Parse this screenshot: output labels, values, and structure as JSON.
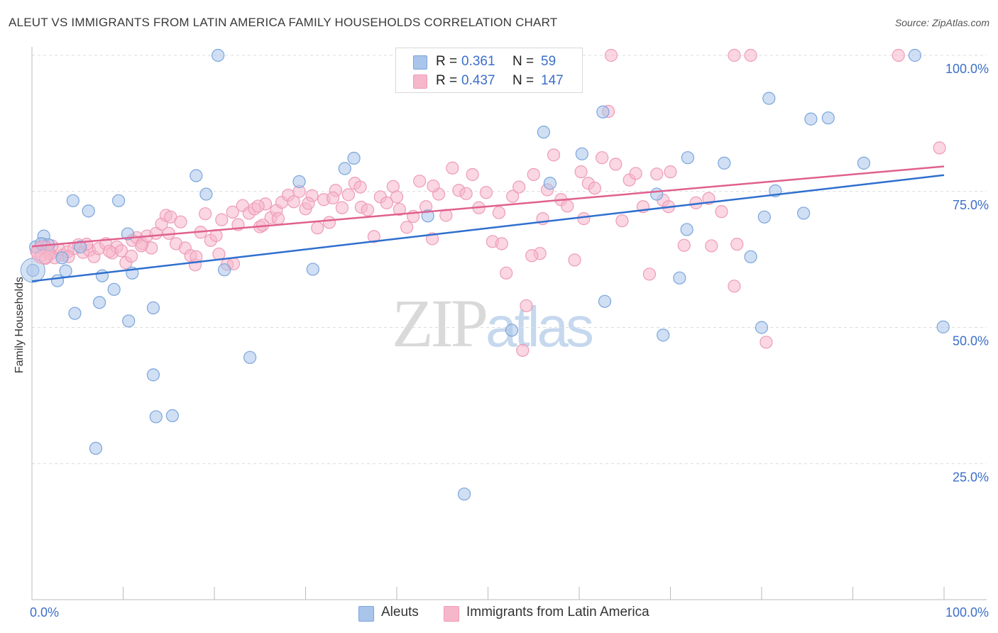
{
  "title": "ALEUT VS IMMIGRANTS FROM LATIN AMERICA FAMILY HOUSEHOLDS CORRELATION CHART",
  "source": "Source: ZipAtlas.com",
  "watermark": {
    "zip": "ZIP",
    "atlas": "atlas"
  },
  "legend_top": {
    "rows": [
      {
        "r_label": "R =",
        "r_value": "0.361",
        "n_label": "N =",
        "n_value": "59",
        "color": "#a9c5ea"
      },
      {
        "r_label": "R =",
        "r_value": "0.437",
        "n_label": "N =",
        "n_value": "147",
        "color": "#f6b7cb"
      }
    ]
  },
  "legend_bottom": [
    {
      "label": "Aleuts",
      "color": "#a9c5ea"
    },
    {
      "label": "Immigrants from Latin America",
      "color": "#f6b7cb"
    }
  ],
  "colors": {
    "aleut_fill": "#a9c5ea",
    "aleut_stroke": "#7aa5dd",
    "aleut_line": "#2f6fce",
    "latin_fill": "#f6b7cb",
    "latin_stroke": "#ee9bb7",
    "latin_line": "#e0608e",
    "tick_text": "#3c6fc9",
    "grid": "#dcdcdc"
  },
  "chart_data": {
    "type": "scatter",
    "title": "ALEUT VS IMMIGRANTS FROM LATIN AMERICA FAMILY HOUSEHOLDS CORRELATION CHART",
    "xlabel": "",
    "ylabel": "Family Households",
    "xlim": [
      0,
      100
    ],
    "ylim": [
      0,
      100
    ],
    "x_tick_labels": [
      "0.0%",
      "100.0%"
    ],
    "y_tick_labels": [
      "25.0%",
      "50.0%",
      "75.0%",
      "100.0%"
    ],
    "y_ticks": [
      25,
      50,
      75,
      100
    ],
    "grid": true,
    "legend_position": "top-center",
    "series": [
      {
        "name": "Aleuts",
        "r": 0.361,
        "n": 59,
        "trend": {
          "x": [
            0,
            100
          ],
          "y": [
            58.5,
            78
          ]
        },
        "points": [
          [
            0.1,
            60.5
          ],
          [
            1.3,
            66.8
          ],
          [
            1.8,
            65.2
          ],
          [
            3.3,
            62.8
          ],
          [
            2.8,
            58.6
          ],
          [
            3.7,
            60.4
          ],
          [
            4.5,
            73.3
          ],
          [
            4.7,
            52.6
          ],
          [
            5.3,
            64.8
          ],
          [
            6.2,
            71.4
          ],
          [
            7.0,
            27.8
          ],
          [
            7.4,
            54.6
          ],
          [
            7.7,
            59.5
          ],
          [
            9.0,
            57.0
          ],
          [
            9.5,
            73.3
          ],
          [
            10.5,
            67.2
          ],
          [
            10.6,
            51.2
          ],
          [
            11.0,
            60.0
          ],
          [
            13.3,
            41.3
          ],
          [
            13.6,
            33.6
          ],
          [
            15.4,
            33.8
          ],
          [
            13.3,
            53.6
          ],
          [
            18.0,
            77.9
          ],
          [
            19.1,
            74.5
          ],
          [
            20.4,
            100.0
          ],
          [
            21.1,
            60.6
          ],
          [
            23.9,
            44.5
          ],
          [
            29.3,
            76.8
          ],
          [
            30.8,
            60.7
          ],
          [
            34.3,
            79.2
          ],
          [
            35.3,
            81.1
          ],
          [
            43.4,
            70.5
          ],
          [
            47.4,
            19.4
          ],
          [
            52.6,
            49.5
          ],
          [
            55.7,
            100.0
          ],
          [
            56.1,
            85.9
          ],
          [
            56.8,
            76.5
          ],
          [
            60.3,
            81.9
          ],
          [
            62.6,
            89.6
          ],
          [
            62.8,
            54.8
          ],
          [
            68.5,
            74.5
          ],
          [
            69.2,
            48.6
          ],
          [
            71.0,
            59.1
          ],
          [
            71.8,
            68.0
          ],
          [
            71.9,
            81.2
          ],
          [
            75.9,
            80.2
          ],
          [
            78.8,
            63.0
          ],
          [
            80.0,
            50.0
          ],
          [
            80.8,
            92.1
          ],
          [
            80.3,
            70.3
          ],
          [
            81.5,
            75.1
          ],
          [
            84.6,
            71.0
          ],
          [
            85.4,
            88.3
          ],
          [
            87.3,
            88.5
          ],
          [
            91.2,
            80.2
          ],
          [
            96.8,
            100.0
          ],
          [
            99.9,
            50.1
          ],
          [
            0.4,
            64.8
          ],
          [
            1.0,
            65.4
          ]
        ]
      },
      {
        "name": "Immigrants from Latin America",
        "r": 0.437,
        "n": 147,
        "trend": {
          "x": [
            0,
            100
          ],
          "y": [
            64.9,
            79.6
          ]
        },
        "points": [
          [
            0.5,
            64.0
          ],
          [
            1.0,
            63.2
          ],
          [
            1.3,
            65.3
          ],
          [
            1.7,
            64.1
          ],
          [
            2.0,
            63.5
          ],
          [
            2.5,
            62.8
          ],
          [
            3.0,
            64.3
          ],
          [
            3.4,
            63.3
          ],
          [
            3.9,
            63.9
          ],
          [
            4.6,
            64.5
          ],
          [
            5.1,
            65.2
          ],
          [
            5.6,
            63.8
          ],
          [
            6.3,
            64.2
          ],
          [
            6.8,
            63.0
          ],
          [
            7.3,
            64.5
          ],
          [
            8.1,
            65.4
          ],
          [
            8.8,
            63.7
          ],
          [
            9.3,
            64.8
          ],
          [
            9.8,
            64.1
          ],
          [
            10.3,
            61.9
          ],
          [
            11.0,
            66.0
          ],
          [
            11.5,
            66.5
          ],
          [
            12.1,
            65.4
          ],
          [
            12.6,
            66.8
          ],
          [
            13.1,
            64.6
          ],
          [
            13.6,
            67.3
          ],
          [
            14.2,
            69.0
          ],
          [
            14.7,
            70.6
          ],
          [
            15.2,
            70.3
          ],
          [
            15.8,
            65.4
          ],
          [
            16.3,
            69.4
          ],
          [
            16.8,
            64.6
          ],
          [
            17.4,
            63.2
          ],
          [
            17.9,
            61.5
          ],
          [
            18.5,
            67.5
          ],
          [
            19.0,
            70.9
          ],
          [
            19.6,
            66.0
          ],
          [
            20.2,
            66.9
          ],
          [
            20.8,
            69.8
          ],
          [
            21.4,
            61.6
          ],
          [
            22.0,
            71.2
          ],
          [
            22.6,
            68.9
          ],
          [
            23.1,
            72.4
          ],
          [
            23.8,
            71.0
          ],
          [
            24.4,
            71.8
          ],
          [
            25.0,
            68.5
          ],
          [
            25.6,
            72.7
          ],
          [
            26.2,
            70.2
          ],
          [
            26.8,
            71.5
          ],
          [
            27.4,
            73.0
          ],
          [
            28.1,
            74.3
          ],
          [
            28.7,
            73.1
          ],
          [
            29.3,
            75.0
          ],
          [
            30.0,
            71.8
          ],
          [
            30.7,
            74.2
          ],
          [
            31.3,
            68.3
          ],
          [
            32.0,
            73.5
          ],
          [
            32.6,
            69.3
          ],
          [
            33.3,
            75.2
          ],
          [
            34.0,
            72.0
          ],
          [
            34.7,
            74.4
          ],
          [
            35.4,
            76.5
          ],
          [
            36.1,
            72.1
          ],
          [
            36.8,
            71.6
          ],
          [
            37.5,
            66.7
          ],
          [
            38.2,
            74.0
          ],
          [
            38.9,
            72.9
          ],
          [
            39.6,
            75.9
          ],
          [
            40.3,
            71.7
          ],
          [
            41.1,
            68.4
          ],
          [
            41.8,
            70.4
          ],
          [
            42.5,
            76.9
          ],
          [
            43.2,
            72.2
          ],
          [
            43.9,
            66.3
          ],
          [
            44.6,
            74.5
          ],
          [
            45.4,
            70.6
          ],
          [
            46.1,
            79.3
          ],
          [
            46.8,
            75.2
          ],
          [
            47.6,
            74.6
          ],
          [
            48.3,
            78.1
          ],
          [
            49.0,
            72.0
          ],
          [
            49.8,
            74.8
          ],
          [
            50.5,
            65.8
          ],
          [
            51.2,
            71.1
          ],
          [
            52.0,
            60.0
          ],
          [
            52.7,
            74.1
          ],
          [
            53.4,
            75.8
          ],
          [
            54.2,
            54.0
          ],
          [
            55.0,
            78.1
          ],
          [
            55.7,
            63.6
          ],
          [
            56.5,
            75.3
          ],
          [
            57.2,
            81.7
          ],
          [
            58.0,
            73.5
          ],
          [
            58.7,
            72.3
          ],
          [
            59.5,
            62.4
          ],
          [
            60.2,
            78.6
          ],
          [
            61.0,
            76.5
          ],
          [
            61.7,
            75.6
          ],
          [
            62.5,
            81.2
          ],
          [
            63.2,
            89.7
          ],
          [
            64.0,
            80.0
          ],
          [
            64.7,
            69.6
          ],
          [
            65.5,
            77.1
          ],
          [
            66.2,
            78.3
          ],
          [
            67.0,
            72.2
          ],
          [
            67.7,
            59.8
          ],
          [
            68.5,
            78.2
          ],
          [
            69.2,
            73.4
          ],
          [
            70.0,
            78.6
          ],
          [
            71.5,
            65.1
          ],
          [
            72.8,
            72.9
          ],
          [
            74.2,
            73.7
          ],
          [
            75.6,
            71.3
          ],
          [
            77.0,
            57.6
          ],
          [
            77.3,
            65.3
          ],
          [
            78.8,
            100.0
          ],
          [
            80.5,
            47.3
          ],
          [
            63.5,
            100.0
          ],
          [
            77.0,
            100.0
          ],
          [
            95.0,
            100.0
          ],
          [
            99.5,
            83.0
          ],
          [
            53.8,
            45.8
          ],
          [
            22.1,
            61.7
          ],
          [
            25.3,
            68.8
          ],
          [
            18.0,
            63.0
          ],
          [
            12.0,
            65.0
          ],
          [
            8.5,
            64.0
          ],
          [
            6.0,
            65.3
          ],
          [
            4.0,
            63.0
          ],
          [
            2.2,
            65.0
          ],
          [
            1.5,
            62.7
          ],
          [
            33.0,
            73.8
          ],
          [
            44.0,
            76.0
          ],
          [
            51.5,
            65.4
          ],
          [
            56.0,
            70.0
          ],
          [
            60.5,
            70.0
          ],
          [
            69.8,
            72.2
          ],
          [
            74.5,
            65.0
          ],
          [
            54.8,
            63.2
          ],
          [
            40.0,
            74.0
          ],
          [
            36.0,
            75.8
          ],
          [
            30.3,
            72.8
          ],
          [
            27.0,
            70.0
          ],
          [
            24.8,
            72.3
          ],
          [
            20.5,
            63.5
          ],
          [
            15.0,
            67.3
          ],
          [
            10.9,
            63.1
          ]
        ]
      }
    ]
  }
}
